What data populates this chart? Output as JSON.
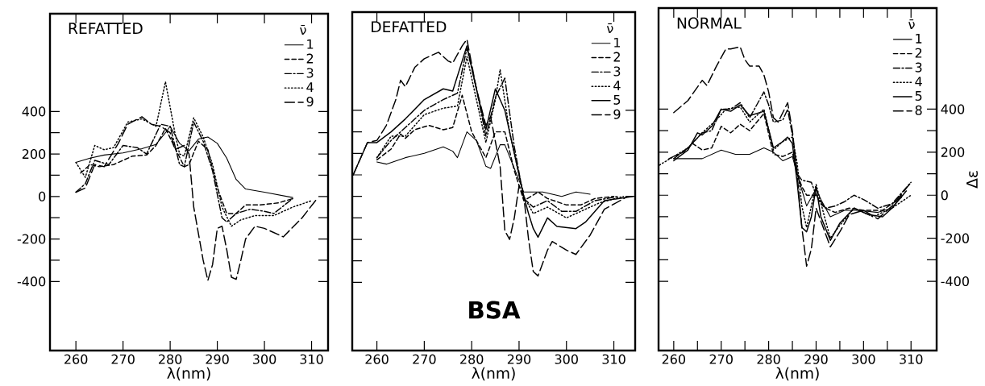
{
  "chart_data": [
    {
      "type": "line",
      "title": "REFATTED",
      "xlabel": "λ(nm)",
      "legend_title": "ν̄",
      "legend": "top right",
      "xlim": [
        254.5,
        313.5
      ],
      "ylim": [
        -725,
        860
      ],
      "xticks": [
        260,
        270,
        280,
        290,
        300,
        310
      ],
      "yticks": [
        -400,
        {
          "value": -300,
          "label": null
        },
        -200,
        {
          "value": -100,
          "label": null
        },
        0,
        {
          "value": 100,
          "label": null
        },
        200,
        {
          "value": 300,
          "label": null
        },
        400
      ],
      "series": [
        {
          "name": "1",
          "color": "#000000",
          "line_style": "solid",
          "x": [
            260,
            263,
            266,
            270,
            274,
            277,
            279,
            280,
            282,
            284,
            286,
            288,
            290,
            292,
            294,
            296,
            300,
            306
          ],
          "values": [
            160,
            180,
            195,
            205,
            225,
            245,
            300,
            330,
            250,
            215,
            270,
            280,
            250,
            180,
            80,
            35,
            20,
            -5
          ]
        },
        {
          "name": "2",
          "color": "#000000",
          "line_style": "dashed",
          "x": [
            261,
            263,
            265,
            268,
            272,
            275,
            277,
            279,
            281,
            283,
            284,
            286,
            288,
            290,
            292,
            294,
            296,
            299,
            303,
            306
          ],
          "values": [
            110,
            150,
            140,
            150,
            190,
            195,
            240,
            320,
            230,
            140,
            150,
            260,
            220,
            40,
            -80,
            -80,
            -40,
            -40,
            -30,
            -10
          ]
        },
        {
          "name": "3",
          "color": "#000000",
          "line_style": "dashdot",
          "x": [
            260,
            262,
            264,
            267,
            270,
            273,
            275,
            278,
            280,
            282,
            283,
            285,
            287,
            289,
            291,
            292,
            294,
            297,
            300,
            302,
            306
          ],
          "values": [
            20,
            60,
            170,
            150,
            240,
            230,
            200,
            340,
            330,
            150,
            140,
            350,
            260,
            120,
            -100,
            -120,
            -80,
            -60,
            -70,
            -80,
            -10
          ]
        },
        {
          "name": "4",
          "color": "#000000",
          "line_style": "dotted",
          "x": [
            260,
            262,
            264,
            266,
            268,
            271,
            274,
            277,
            279,
            281,
            282,
            283,
            285,
            287,
            289,
            291,
            293,
            295,
            298,
            302,
            306,
            310
          ],
          "values": [
            160,
            90,
            240,
            220,
            230,
            350,
            365,
            330,
            540,
            300,
            200,
            190,
            370,
            280,
            150,
            -50,
            -140,
            -110,
            -90,
            -90,
            -50,
            -20
          ]
        },
        {
          "name": "9",
          "color": "#000000",
          "line_style": "longdashed",
          "x": [
            260,
            262,
            264,
            266,
            269,
            271,
            274,
            276,
            278,
            280,
            281,
            283,
            284,
            285,
            287,
            288,
            289,
            290,
            291,
            292,
            293,
            294,
            295,
            296,
            298,
            300,
            304,
            308,
            311
          ],
          "values": [
            20,
            40,
            150,
            140,
            250,
            340,
            375,
            340,
            330,
            300,
            220,
            240,
            200,
            -50,
            -300,
            -395,
            -320,
            -150,
            -140,
            -250,
            -380,
            -390,
            -300,
            -200,
            -140,
            -150,
            -190,
            -100,
            -15
          ]
        }
      ]
    },
    {
      "type": "line",
      "title": "DEFATTED",
      "xlabel": "λ(nm)",
      "legend_title": "ν̄",
      "legend": "top right",
      "tick_labels": "x",
      "xlim": [
        254.8,
        314.5
      ],
      "ylim": [
        -717,
        857
      ],
      "xticks": [
        260,
        270,
        280,
        290,
        300,
        310
      ],
      "yticks": [
        -400,
        {
          "value": -300,
          "label": null
        },
        -200,
        {
          "value": -100,
          "label": null
        },
        0,
        {
          "value": 100,
          "label": null
        },
        200,
        {
          "value": 300,
          "label": null
        },
        400
      ],
      "annotations": [
        "BSA"
      ],
      "series": [
        {
          "name": "1",
          "color": "#000000",
          "line_style": "solid",
          "x": [
            260,
            262,
            266,
            270,
            274,
            276,
            277,
            279,
            281,
            283,
            284,
            286,
            287,
            289,
            291,
            293,
            295,
            299,
            302,
            305
          ],
          "values": [
            160,
            150,
            180,
            200,
            230,
            210,
            180,
            300,
            260,
            140,
            130,
            240,
            240,
            130,
            20,
            20,
            20,
            0,
            20,
            10
          ]
        },
        {
          "name": "2",
          "color": "#000000",
          "line_style": "dashed",
          "x": [
            260,
            263,
            265,
            266,
            268,
            271,
            274,
            276,
            278,
            280,
            283,
            285,
            287,
            289,
            291,
            294,
            296,
            300,
            303,
            306,
            310
          ],
          "values": [
            170,
            220,
            290,
            270,
            310,
            330,
            310,
            320,
            470,
            300,
            180,
            300,
            300,
            120,
            -20,
            20,
            -10,
            -40,
            -40,
            -10,
            0
          ]
        },
        {
          "name": "3",
          "color": "#000000",
          "line_style": "dashdot",
          "x": [
            260,
            263,
            266,
            270,
            274,
            277,
            279,
            281,
            283,
            285,
            287,
            289,
            291,
            293,
            296,
            299,
            302,
            306,
            311
          ],
          "values": [
            180,
            260,
            320,
            400,
            450,
            480,
            690,
            500,
            280,
            460,
            550,
            230,
            -10,
            -50,
            -20,
            -70,
            -70,
            -20,
            0
          ]
        },
        {
          "name": "4",
          "color": "#000000",
          "line_style": "dotted",
          "x": [
            260,
            263,
            266,
            270,
            274,
            277,
            279,
            281,
            283,
            285,
            286,
            288,
            291,
            293,
            296,
            300,
            303,
            307,
            312
          ],
          "values": [
            180,
            280,
            280,
            380,
            410,
            420,
            650,
            450,
            250,
            450,
            590,
            300,
            0,
            -80,
            -50,
            -100,
            -70,
            -30,
            0
          ]
        },
        {
          "name": "5",
          "color": "#000000",
          "line_style": "solid",
          "x": [
            255,
            258,
            260,
            263,
            266,
            270,
            274,
            276,
            279,
            281,
            283,
            285,
            287,
            289,
            291,
            292,
            293,
            294,
            296,
            298,
            302,
            304,
            308,
            314
          ],
          "values": [
            100,
            250,
            250,
            300,
            360,
            450,
            500,
            490,
            700,
            500,
            310,
            500,
            400,
            200,
            0,
            -80,
            -150,
            -190,
            -100,
            -140,
            -150,
            -120,
            -20,
            0
          ]
        },
        {
          "name": "9",
          "color": "#000000",
          "line_style": "longdashed",
          "x": [
            255,
            258,
            260,
            262,
            264,
            265,
            266,
            268,
            270,
            273,
            275,
            276,
            278,
            279,
            281,
            283,
            284,
            286,
            287,
            288,
            289,
            290,
            291,
            292,
            293,
            294,
            296,
            297,
            300,
            302,
            305,
            308,
            313
          ],
          "values": [
            100,
            250,
            260,
            330,
            450,
            540,
            510,
            600,
            640,
            670,
            630,
            620,
            700,
            730,
            500,
            330,
            370,
            140,
            -160,
            -200,
            -100,
            50,
            0,
            -200,
            -350,
            -370,
            -250,
            -210,
            -250,
            -270,
            -180,
            -60,
            0
          ]
        }
      ]
    },
    {
      "type": "line",
      "title": "NORMAL",
      "xlabel": "λ(nm)",
      "y2label": "Δε",
      "legend_title": "ν̄",
      "legend": "top right",
      "xlim": [
        256.8,
        315.4
      ],
      "y2lim": [
        -722,
        870
      ],
      "xticks": [
        260,
        {
          "value": 265,
          "label": null
        },
        270,
        {
          "value": 275,
          "label": null
        },
        280,
        {
          "value": 285,
          "label": null
        },
        290,
        {
          "value": 295,
          "label": null
        },
        300,
        {
          "value": 305,
          "label": null
        },
        310
      ],
      "y2ticks": [
        -400,
        {
          "value": -300,
          "label": null
        },
        -200,
        {
          "value": -100,
          "label": null
        },
        0,
        {
          "value": 100,
          "label": null
        },
        200,
        {
          "value": 300,
          "label": null
        },
        400
      ],
      "series": [
        {
          "name": "1",
          "color": "#000000",
          "line_style": "solid",
          "axis": "y2",
          "x": [
            260,
            263,
            266,
            270,
            273,
            276,
            279,
            281,
            283,
            285,
            286,
            288,
            290,
            291,
            293,
            296,
            299,
            303,
            306,
            308
          ],
          "values": [
            170,
            170,
            170,
            210,
            190,
            190,
            220,
            200,
            160,
            180,
            100,
            -50,
            30,
            -20,
            -100,
            -70,
            -70,
            -80,
            -60,
            0
          ]
        },
        {
          "name": "2",
          "color": "#000000",
          "line_style": "dashed",
          "axis": "y2",
          "x": [
            259,
            262,
            264,
            266,
            268,
            270,
            272,
            274,
            276,
            279,
            281,
            283,
            285,
            286,
            287,
            288,
            290,
            291,
            292,
            294,
            297,
            300,
            304,
            308
          ],
          "values": [
            170,
            200,
            240,
            210,
            220,
            320,
            290,
            330,
            300,
            380,
            190,
            180,
            200,
            100,
            40,
            0,
            0,
            -40,
            -60,
            -80,
            -60,
            -70,
            -70,
            -10
          ]
        },
        {
          "name": "3",
          "color": "#000000",
          "line_style": "dashdot",
          "axis": "y2",
          "x": [
            260,
            263,
            266,
            268,
            270,
            272,
            274,
            276,
            279,
            280,
            281,
            283,
            284,
            285,
            286,
            287,
            289,
            290,
            292,
            294,
            296,
            298,
            300,
            303,
            306,
            310
          ],
          "values": [
            170,
            220,
            290,
            300,
            400,
            400,
            430,
            360,
            480,
            420,
            340,
            350,
            400,
            280,
            100,
            70,
            60,
            0,
            -60,
            -50,
            -30,
            0,
            -20,
            -60,
            -40,
            60
          ]
        },
        {
          "name": "4",
          "color": "#000000",
          "line_style": "dotted",
          "axis": "y2",
          "x": [
            257,
            260,
            263,
            266,
            269,
            271,
            274,
            276,
            279,
            281,
            283,
            285,
            286,
            287,
            288,
            290,
            292,
            293,
            295,
            298,
            302,
            306,
            310
          ],
          "values": [
            140,
            180,
            220,
            290,
            350,
            400,
            410,
            340,
            400,
            210,
            250,
            270,
            150,
            -50,
            -150,
            50,
            -120,
            -200,
            -140,
            -60,
            -100,
            -60,
            0
          ]
        },
        {
          "name": "5",
          "color": "#000000",
          "line_style": "solid",
          "axis": "y2",
          "x": [
            260,
            263,
            265,
            266,
            268,
            270,
            272,
            274,
            276,
            279,
            281,
            283,
            284,
            285,
            286,
            287,
            288,
            289,
            290,
            291,
            293,
            295,
            298,
            301,
            304,
            306,
            309
          ],
          "values": [
            160,
            210,
            290,
            280,
            320,
            400,
            390,
            420,
            370,
            390,
            220,
            250,
            270,
            240,
            60,
            -150,
            -170,
            -100,
            40,
            -100,
            -210,
            -130,
            -60,
            -90,
            -100,
            -60,
            20
          ]
        },
        {
          "name": "8",
          "color": "#000000",
          "line_style": "longdashed",
          "axis": "y2",
          "x": [
            260,
            263,
            266,
            267,
            269,
            271,
            272,
            274,
            275,
            276,
            278,
            279,
            280,
            281,
            282,
            284,
            285,
            286,
            287,
            288,
            289,
            290,
            291,
            293,
            295,
            297,
            300,
            303,
            306,
            310
          ],
          "values": [
            384,
            440,
            534,
            510,
            600,
            680,
            680,
            690,
            630,
            600,
            600,
            560,
            480,
            360,
            340,
            430,
            300,
            100,
            -150,
            -330,
            -250,
            -60,
            -120,
            -240,
            -170,
            -90,
            -70,
            -110,
            -50,
            60
          ]
        }
      ]
    }
  ]
}
